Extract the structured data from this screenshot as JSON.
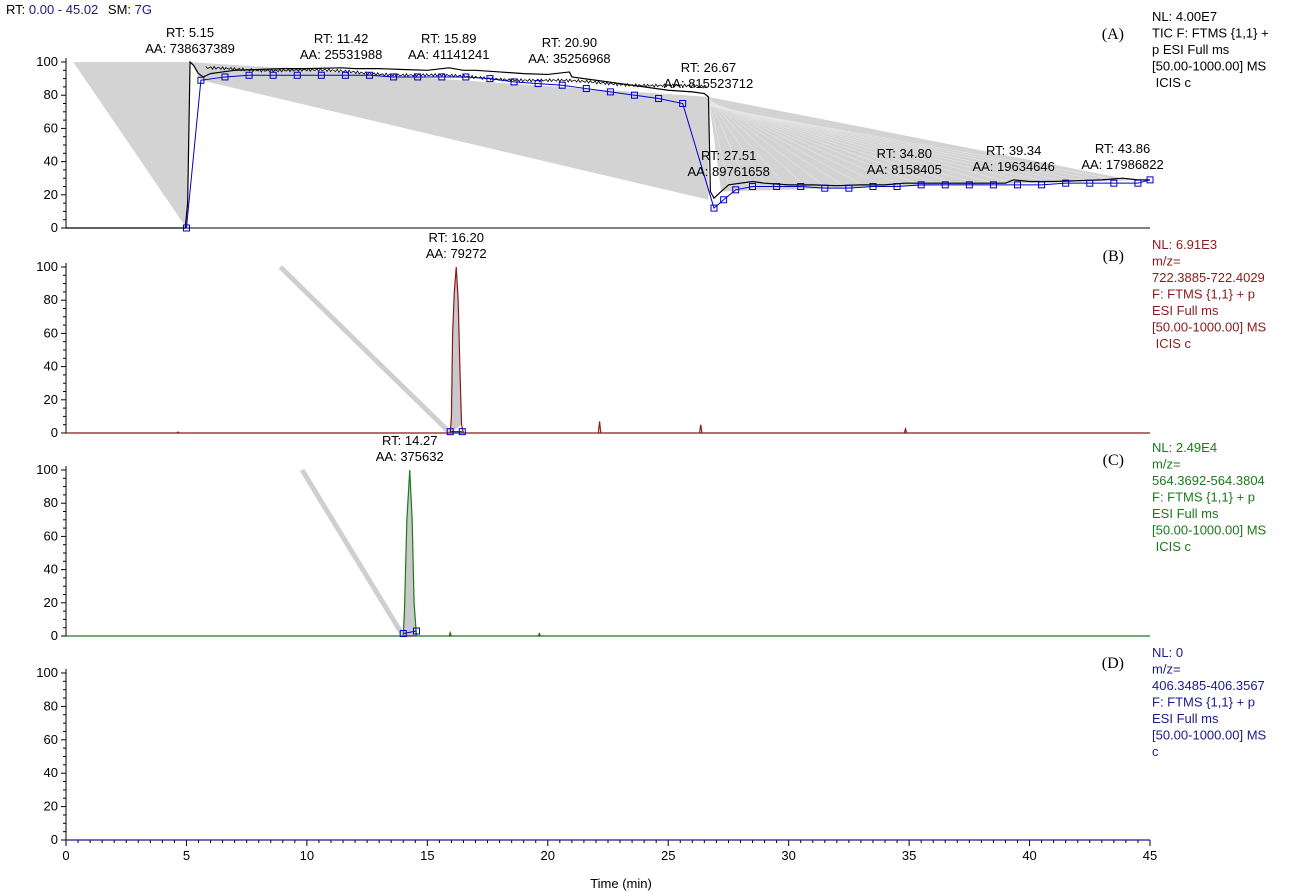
{
  "header": {
    "rt_label": "RT:",
    "rt_range": "0.00 - 45.02",
    "sm_label": "SM:",
    "sm_value": "7G"
  },
  "chart_data": {
    "type": "line",
    "xlabel": "Time (min)",
    "xlim": [
      0,
      45
    ],
    "x_ticks": [
      "0",
      "5",
      "10",
      "15",
      "20",
      "25",
      "30",
      "35",
      "40",
      "45"
    ],
    "y_ticks": [
      "0",
      "20",
      "40",
      "60",
      "80",
      "100"
    ],
    "ylim": [
      0,
      100
    ],
    "panels": [
      {
        "letter": "(A)",
        "color": "#000000",
        "marker_color": "#0000cc",
        "info": [
          "NL: 4.00E7",
          "TIC F: FTMS {1,1} +",
          "p ESI Full ms",
          "[50.00-1000.00]  MS",
          " ICIS c"
        ],
        "info_color": "#000000",
        "trace": [
          [
            0,
            0
          ],
          [
            4.95,
            0
          ],
          [
            5.05,
            15
          ],
          [
            5.15,
            100
          ],
          [
            5.3,
            98
          ],
          [
            5.5,
            93
          ],
          [
            5.7,
            91
          ],
          [
            6,
            93
          ],
          [
            6.5,
            94
          ],
          [
            7,
            95
          ],
          [
            8,
            95.5
          ],
          [
            9,
            96
          ],
          [
            10,
            96
          ],
          [
            11.42,
            96.5
          ],
          [
            12,
            96
          ],
          [
            13,
            96
          ],
          [
            14,
            95.5
          ],
          [
            15,
            95
          ],
          [
            15.89,
            96.5
          ],
          [
            16.5,
            95
          ],
          [
            17,
            95
          ],
          [
            18,
            94
          ],
          [
            19,
            93
          ],
          [
            20,
            92.5
          ],
          [
            20.9,
            94
          ],
          [
            21,
            91
          ],
          [
            22,
            89
          ],
          [
            23,
            87
          ],
          [
            24,
            85
          ],
          [
            25,
            83
          ],
          [
            26,
            82
          ],
          [
            26.5,
            81
          ],
          [
            26.67,
            79
          ],
          [
            26.75,
            22
          ],
          [
            26.9,
            18
          ],
          [
            27.2,
            22
          ],
          [
            27.51,
            26
          ],
          [
            28,
            27
          ],
          [
            28.5,
            28
          ],
          [
            29,
            27
          ],
          [
            30,
            26
          ],
          [
            31,
            26
          ],
          [
            32,
            25.5
          ],
          [
            33,
            26
          ],
          [
            34,
            26
          ],
          [
            34.8,
            27
          ],
          [
            35,
            27
          ],
          [
            36,
            27
          ],
          [
            37,
            27
          ],
          [
            38,
            27
          ],
          [
            39,
            27
          ],
          [
            39.34,
            29
          ],
          [
            40,
            28
          ],
          [
            41,
            28
          ],
          [
            42,
            28.5
          ],
          [
            43,
            29
          ],
          [
            43.86,
            30
          ],
          [
            44.5,
            29
          ],
          [
            45,
            29
          ]
        ],
        "fill_segments": [
          [
            5.15,
            43.86
          ],
          [
            5.15,
            26.67
          ],
          [
            26.67,
            43.86
          ]
        ],
        "baseline_markers": [
          [
            5.0,
            0
          ],
          [
            5.6,
            89
          ],
          [
            6.6,
            91
          ],
          [
            7.6,
            92
          ],
          [
            8.6,
            92
          ],
          [
            9.6,
            92
          ],
          [
            10.6,
            92
          ],
          [
            11.6,
            92
          ],
          [
            12.6,
            92
          ],
          [
            13.6,
            91
          ],
          [
            14.6,
            91
          ],
          [
            15.6,
            91
          ],
          [
            16.6,
            91
          ],
          [
            17.6,
            90
          ],
          [
            18.6,
            88
          ],
          [
            19.6,
            87
          ],
          [
            20.6,
            86
          ],
          [
            21.6,
            84
          ],
          [
            22.6,
            82
          ],
          [
            23.6,
            80
          ],
          [
            24.6,
            78
          ],
          [
            25.6,
            75
          ],
          [
            26.9,
            12
          ],
          [
            27.3,
            17
          ],
          [
            27.8,
            23
          ],
          [
            28.5,
            25
          ],
          [
            29.5,
            25
          ],
          [
            30.5,
            25
          ],
          [
            31.5,
            24
          ],
          [
            32.5,
            24
          ],
          [
            33.5,
            25
          ],
          [
            34.5,
            25
          ],
          [
            35.5,
            26
          ],
          [
            36.5,
            26
          ],
          [
            37.5,
            26
          ],
          [
            38.5,
            26
          ],
          [
            39.5,
            26
          ],
          [
            40.5,
            26
          ],
          [
            41.5,
            27
          ],
          [
            42.5,
            27
          ],
          [
            43.5,
            27
          ],
          [
            44.5,
            27
          ],
          [
            45,
            29
          ]
        ],
        "labels": [
          {
            "rt": "RT: 5.15",
            "aa": "AA: 738637389",
            "x": 5.15,
            "y": 100
          },
          {
            "rt": "RT: 11.42",
            "aa": "AA: 25531988",
            "x": 11.42,
            "y": 96.5
          },
          {
            "rt": "RT: 15.89",
            "aa": "AA: 41141241",
            "x": 15.89,
            "y": 96.5
          },
          {
            "rt": "RT: 20.90",
            "aa": "AA: 35256968",
            "x": 20.9,
            "y": 94
          },
          {
            "rt": "RT: 26.67",
            "aa": "AA: 815523712",
            "x": 26.67,
            "y": 79
          },
          {
            "rt": "RT: 27.51",
            "aa": "AA: 89761658",
            "x": 27.51,
            "y": 26
          },
          {
            "rt": "RT: 34.80",
            "aa": "AA: 8158405",
            "x": 34.8,
            "y": 27
          },
          {
            "rt": "RT: 39.34",
            "aa": "AA: 19634646",
            "x": 39.34,
            "y": 29
          },
          {
            "rt": "RT: 43.86",
            "aa": "AA: 17986822",
            "x": 43.86,
            "y": 30
          }
        ]
      },
      {
        "letter": "(B)",
        "color": "#8b1a1a",
        "marker_color": "#0000cc",
        "info": [
          "NL: 6.91E3",
          "m/z=",
          "722.3885-722.4029",
          "F: FTMS {1,1}  + p",
          "ESI Full ms",
          "[50.00-1000.00]  MS",
          " ICIS c"
        ],
        "info_color": "#8b1a1a",
        "trace": [
          [
            0,
            0
          ],
          [
            4.6,
            0
          ],
          [
            4.65,
            0.6
          ],
          [
            4.7,
            0
          ],
          [
            15.95,
            0
          ],
          [
            16.0,
            10
          ],
          [
            16.05,
            60
          ],
          [
            16.12,
            85
          ],
          [
            16.2,
            100
          ],
          [
            16.28,
            80
          ],
          [
            16.35,
            40
          ],
          [
            16.42,
            5
          ],
          [
            16.5,
            0
          ],
          [
            22.1,
            0
          ],
          [
            22.15,
            7
          ],
          [
            22.2,
            0
          ],
          [
            26.3,
            0
          ],
          [
            26.35,
            5
          ],
          [
            26.4,
            0
          ],
          [
            34.8,
            0
          ],
          [
            34.85,
            2.5
          ],
          [
            34.9,
            0
          ],
          [
            45,
            0
          ]
        ],
        "peak": {
          "start": 15.95,
          "apex": 16.2,
          "end": 16.45
        },
        "shade_line": [
          [
            8.9,
            100
          ],
          [
            15.95,
            0
          ]
        ],
        "baseline_markers": [
          [
            15.95,
            0.8
          ],
          [
            16.45,
            0.8
          ]
        ],
        "labels": [
          {
            "rt": "RT: 16.20",
            "aa": "AA: 79272",
            "x": 16.2,
            "y": 100
          }
        ]
      },
      {
        "letter": "(C)",
        "color": "#1a7a1a",
        "marker_color": "#0000cc",
        "info": [
          "NL: 2.49E4",
          "m/z=",
          "564.3692-564.3804",
          "F: FTMS {1,1}  + p",
          "ESI Full ms",
          "[50.00-1000.00]  MS",
          " ICIS c"
        ],
        "info_color": "#1a7a1a",
        "trace": [
          [
            0,
            0
          ],
          [
            14.0,
            0
          ],
          [
            14.05,
            15
          ],
          [
            14.15,
            70
          ],
          [
            14.27,
            100
          ],
          [
            14.37,
            70
          ],
          [
            14.45,
            20
          ],
          [
            14.55,
            0
          ],
          [
            15.9,
            0
          ],
          [
            15.95,
            2
          ],
          [
            16.0,
            0
          ],
          [
            19.6,
            0
          ],
          [
            19.65,
            1.5
          ],
          [
            19.7,
            0
          ],
          [
            45,
            0
          ]
        ],
        "peak": {
          "start": 14.0,
          "apex": 14.27,
          "end": 14.55
        },
        "shade_line": [
          [
            9.8,
            100
          ],
          [
            14.0,
            0
          ]
        ],
        "baseline_markers": [
          [
            14.0,
            1.5
          ],
          [
            14.55,
            3
          ]
        ],
        "labels": [
          {
            "rt": "RT: 14.27",
            "aa": "AA: 375632",
            "x": 14.27,
            "y": 100
          }
        ]
      },
      {
        "letter": "(D)",
        "color": "#1a1a8b",
        "marker_color": "#0000cc",
        "info": [
          "NL: 0",
          "m/z=",
          "406.3485-406.3567",
          "F: FTMS {1,1}  + p",
          "ESI Full ms",
          "[50.00-1000.00]  MS",
          "c"
        ],
        "info_color": "#1a1a8b",
        "trace": [
          [
            0,
            0
          ],
          [
            45,
            0
          ]
        ],
        "labels": []
      }
    ]
  }
}
